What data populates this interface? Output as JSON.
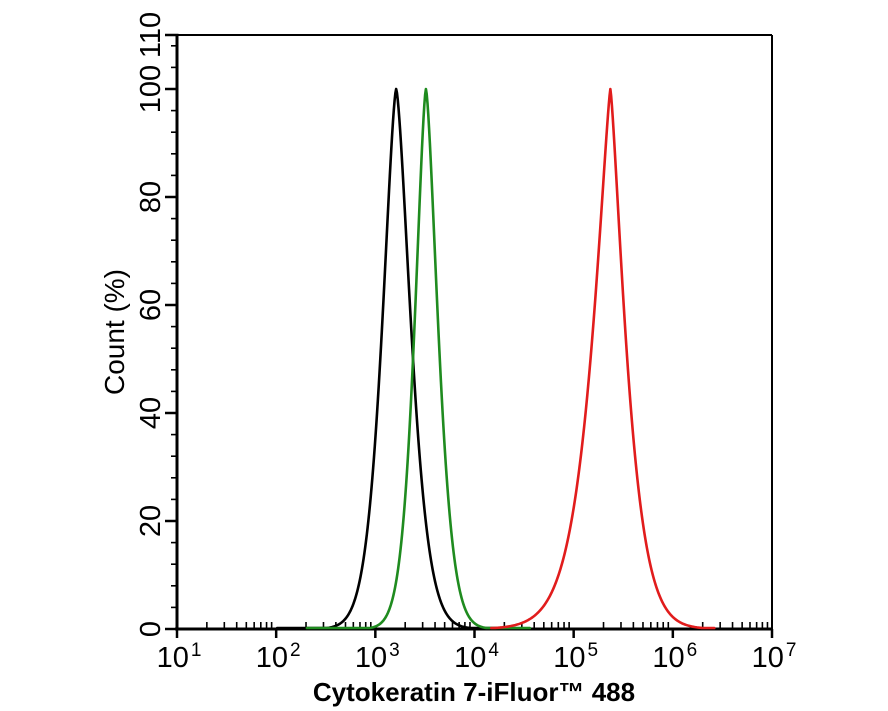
{
  "chart_data": {
    "type": "line",
    "subtype": "flow-cytometry-overlay-histogram",
    "title": "",
    "xlabel": "Cytokeratin 7-iFluor™ 488",
    "ylabel": "Count (%)",
    "background": "#ffffff",
    "grid": false,
    "legend": null,
    "x_axis": {
      "scale": "log10",
      "min_exponent": 1,
      "max_exponent": 7,
      "tick_labels": [
        "10^1",
        "10^2",
        "10^3",
        "10^4",
        "10^5",
        "10^6",
        "10^7"
      ],
      "minor_tick_multiples": [
        2,
        3,
        4,
        5,
        6,
        7,
        8,
        9
      ],
      "axis_color": "#000000"
    },
    "y_axis": {
      "min": 0,
      "max": 110,
      "major_ticks": [
        0,
        20,
        40,
        60,
        80,
        100,
        110
      ],
      "minor_step": 4,
      "axis_color": "#000000"
    },
    "series": [
      {
        "name": "black",
        "color": "#000000",
        "peak_x_value": 1600,
        "peak_center_log10": 3.21,
        "peak_height": 100,
        "hwhm_left": 0.16,
        "hwhm_right": 0.17,
        "shape_left": 1.5,
        "shape_right": 1.5
      },
      {
        "name": "green",
        "color": "#1f8b1f",
        "peak_x_value": 3200,
        "peak_center_log10": 3.51,
        "peak_height": 100,
        "hwhm_left": 0.13,
        "hwhm_right": 0.14,
        "shape_left": 1.5,
        "shape_right": 1.5
      },
      {
        "name": "red",
        "color": "#e11c1c",
        "peak_x_value": 230000,
        "peak_center_log10": 5.37,
        "peak_height": 100,
        "hwhm_left": 0.2,
        "hwhm_right": 0.17,
        "shape_left": 1.25,
        "shape_right": 1.3
      }
    ]
  }
}
